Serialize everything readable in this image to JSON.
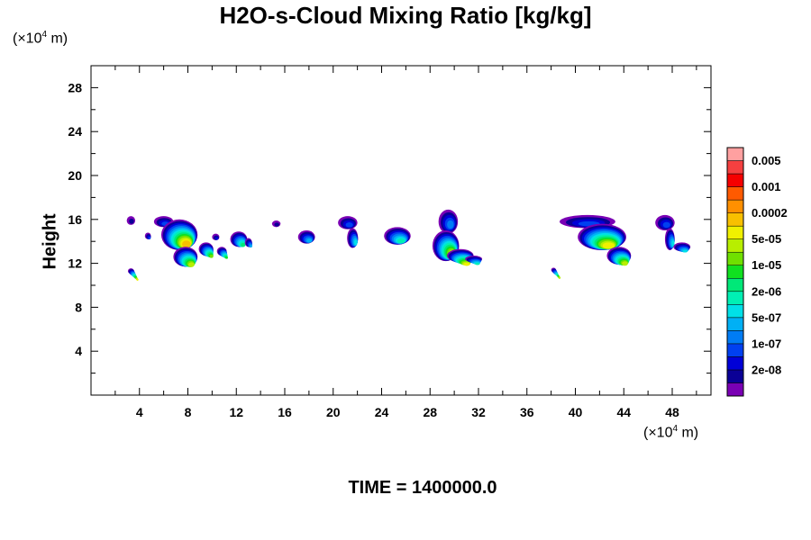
{
  "chart_data": {
    "type": "heatmap",
    "title": "H2O-s-Cloud Mixing Ratio [kg/kg]",
    "ylabel": "Height",
    "x_unit": {
      "prefix": "(×10",
      "exp": "4",
      "suffix": " m)"
    },
    "y_unit": {
      "prefix": "(×10",
      "exp": "4",
      "suffix": " m)"
    },
    "xlim": [
      0,
      51.2
    ],
    "ylim": [
      0,
      30
    ],
    "x_ticks": [
      4,
      8,
      12,
      16,
      20,
      24,
      28,
      32,
      36,
      40,
      44,
      48
    ],
    "y_ticks": [
      4,
      8,
      12,
      16,
      20,
      24,
      28
    ],
    "grid": false,
    "colorbar": {
      "colors": [
        "#7a00b4",
        "#0a0096",
        "#0000d7",
        "#0040f0",
        "#007cf5",
        "#00b0f5",
        "#00e0e8",
        "#00f0b4",
        "#00e878",
        "#10e020",
        "#70e000",
        "#b8ee00",
        "#f0f000",
        "#f8c000",
        "#ff9000",
        "#ff5a00",
        "#f50000",
        "#f54040",
        "#ffa0a0"
      ],
      "labels": [
        "0.005",
        "0.001",
        "0.0002",
        "5e-05",
        "1e-05",
        "2e-06",
        "5e-07",
        "1e-07",
        "2e-08"
      ]
    },
    "clouds": [
      {
        "x": 3.3,
        "y": 15.9,
        "w": 0.7,
        "h": 0.8,
        "peak": 1
      },
      {
        "x": 3.3,
        "y": 11.3,
        "w": 0.5,
        "h": 0.5,
        "peak": 12
      },
      {
        "x": 4.7,
        "y": 14.5,
        "w": 0.5,
        "h": 0.6,
        "peak": 3
      },
      {
        "x": 6.0,
        "y": 15.8,
        "w": 1.6,
        "h": 1.0,
        "peak": 3
      },
      {
        "x": 7.3,
        "y": 14.6,
        "w": 3.0,
        "h": 2.8,
        "peak": 13
      },
      {
        "x": 7.8,
        "y": 12.6,
        "w": 2.0,
        "h": 1.8,
        "peak": 11
      },
      {
        "x": 9.5,
        "y": 13.3,
        "w": 1.2,
        "h": 1.2,
        "peak": 10
      },
      {
        "x": 10.3,
        "y": 14.4,
        "w": 0.6,
        "h": 0.6,
        "peak": 2
      },
      {
        "x": 10.8,
        "y": 13.1,
        "w": 0.8,
        "h": 0.8,
        "peak": 9
      },
      {
        "x": 12.2,
        "y": 14.2,
        "w": 1.4,
        "h": 1.4,
        "peak": 8
      },
      {
        "x": 13.0,
        "y": 13.9,
        "w": 0.6,
        "h": 0.8,
        "peak": 5
      },
      {
        "x": 15.3,
        "y": 15.6,
        "w": 0.7,
        "h": 0.6,
        "peak": 1
      },
      {
        "x": 17.8,
        "y": 14.4,
        "w": 1.4,
        "h": 1.2,
        "peak": 5
      },
      {
        "x": 21.2,
        "y": 15.7,
        "w": 1.6,
        "h": 1.2,
        "peak": 3
      },
      {
        "x": 21.6,
        "y": 14.3,
        "w": 0.9,
        "h": 1.8,
        "peak": 6
      },
      {
        "x": 25.3,
        "y": 14.5,
        "w": 2.2,
        "h": 1.6,
        "peak": 7
      },
      {
        "x": 29.5,
        "y": 15.8,
        "w": 1.6,
        "h": 2.2,
        "peak": 4
      },
      {
        "x": 29.3,
        "y": 13.6,
        "w": 2.2,
        "h": 2.8,
        "peak": 11
      },
      {
        "x": 30.5,
        "y": 12.7,
        "w": 2.2,
        "h": 1.2,
        "peak": 12
      },
      {
        "x": 31.6,
        "y": 12.4,
        "w": 1.4,
        "h": 0.6,
        "peak": 7
      },
      {
        "x": 38.2,
        "y": 11.4,
        "w": 0.4,
        "h": 0.4,
        "peak": 11
      },
      {
        "x": 41.0,
        "y": 15.8,
        "w": 4.6,
        "h": 1.2,
        "peak": 3
      },
      {
        "x": 42.2,
        "y": 14.4,
        "w": 4.0,
        "h": 2.4,
        "peak": 12
      },
      {
        "x": 43.6,
        "y": 12.7,
        "w": 2.0,
        "h": 1.6,
        "peak": 11
      },
      {
        "x": 47.4,
        "y": 15.7,
        "w": 1.6,
        "h": 1.4,
        "peak": 3
      },
      {
        "x": 47.8,
        "y": 14.2,
        "w": 0.8,
        "h": 2.0,
        "peak": 6
      },
      {
        "x": 48.8,
        "y": 13.5,
        "w": 1.4,
        "h": 0.8,
        "peak": 6
      }
    ]
  },
  "footer": {
    "time_label": "TIME = 1400000.0"
  }
}
